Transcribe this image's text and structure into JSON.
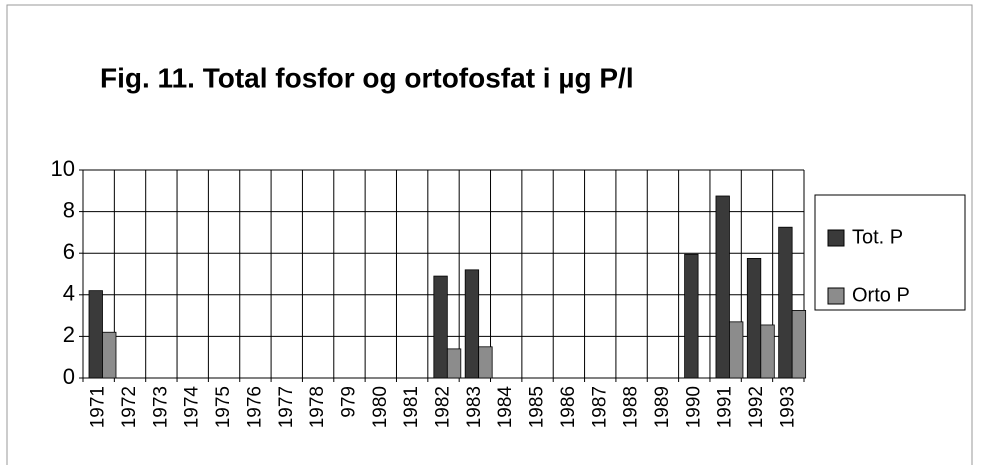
{
  "chart_data": {
    "type": "bar",
    "title": "Fig. 11. Total fosfor og ortofosfat i µg P/l",
    "categories": [
      "1971",
      "1972",
      "1973",
      "1974",
      "1975",
      "1976",
      "1977",
      "1978",
      "979",
      "1980",
      "1981",
      "1982",
      "1983",
      "1984",
      "1985",
      "1986",
      "1987",
      "1988",
      "1989",
      "1990",
      "1991",
      "1992",
      "1993"
    ],
    "series": [
      {
        "name": "Tot. P",
        "color": "#3a3a3a",
        "values": [
          4.2,
          null,
          null,
          null,
          null,
          null,
          null,
          null,
          null,
          null,
          null,
          4.9,
          5.2,
          null,
          null,
          null,
          null,
          null,
          null,
          5.95,
          8.75,
          5.75,
          7.25
        ]
      },
      {
        "name": "Orto P",
        "color": "#8c8c8c",
        "values": [
          2.2,
          null,
          null,
          null,
          null,
          null,
          null,
          null,
          null,
          null,
          null,
          1.4,
          1.5,
          null,
          null,
          null,
          null,
          null,
          null,
          null,
          2.7,
          2.55,
          3.25
        ]
      }
    ],
    "ylim": [
      0,
      10
    ],
    "yticks": [
      0,
      2,
      4,
      6,
      8,
      10
    ],
    "grid": true,
    "legend": "right"
  }
}
